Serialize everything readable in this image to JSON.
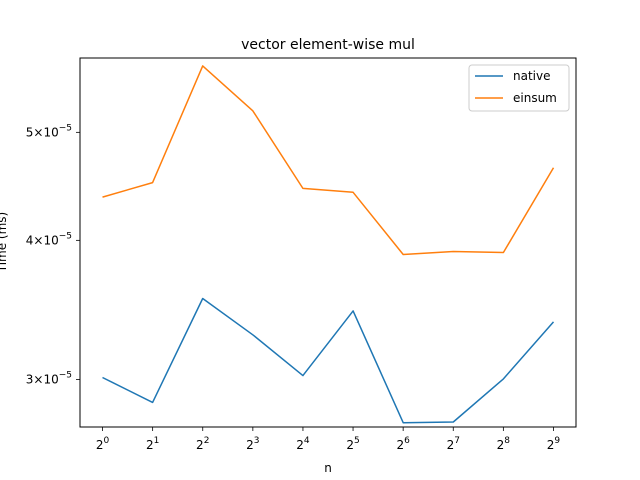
{
  "chart_data": {
    "type": "line",
    "title": "vector element-wise mul",
    "xlabel": "n",
    "ylabel": "Time (ms)",
    "x_tick_base": "2",
    "x_tick_exponents": [
      "0",
      "1",
      "2",
      "3",
      "4",
      "5",
      "6",
      "7",
      "8",
      "9"
    ],
    "x": [
      1,
      2,
      4,
      8,
      16,
      32,
      64,
      128,
      256,
      512
    ],
    "x_scale": "log2",
    "y_scale": "log",
    "ylim": [
      2.72e-05,
      5.83e-05
    ],
    "y_ticks": [
      {
        "value": 3e-05,
        "mantissa": "3",
        "base": "10",
        "exp": "−5"
      },
      {
        "value": 4e-05,
        "mantissa": "4",
        "base": "10",
        "exp": "−5"
      },
      {
        "value": 5e-05,
        "mantissa": "5",
        "base": "10",
        "exp": "−5"
      }
    ],
    "series": [
      {
        "name": "native",
        "color": "#1f77b4",
        "values": [
          3.013e-05,
          2.862e-05,
          3.547e-05,
          3.291e-05,
          3.025e-05,
          3.457e-05,
          2.744e-05,
          2.748e-05,
          3.004e-05,
          3.38e-05
        ]
      },
      {
        "name": "einsum",
        "color": "#ff7f0e",
        "values": [
          4.374e-05,
          4.507e-05,
          5.736e-05,
          5.228e-05,
          4.453e-05,
          4.417e-05,
          3.885e-05,
          3.909e-05,
          3.901e-05,
          4.647e-05
        ]
      }
    ],
    "grid": false,
    "legend": "top-right"
  }
}
